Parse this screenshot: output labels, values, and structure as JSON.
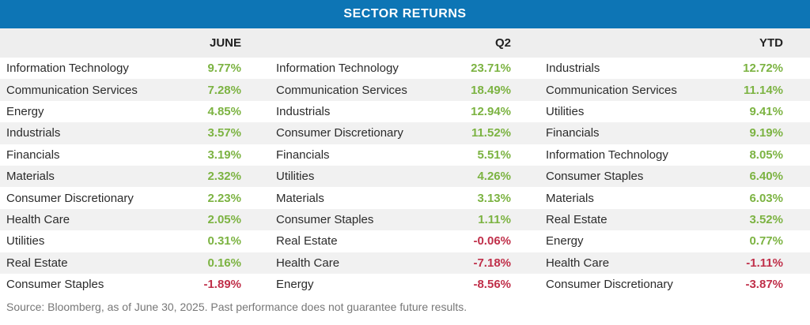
{
  "title": "SECTOR RETURNS",
  "columns": [
    {
      "heading": "JUNE",
      "rows": [
        {
          "sector": "Information Technology",
          "value": "9.77%"
        },
        {
          "sector": "Communication Services",
          "value": "7.28%"
        },
        {
          "sector": "Energy",
          "value": "4.85%"
        },
        {
          "sector": "Industrials",
          "value": "3.57%"
        },
        {
          "sector": "Financials",
          "value": "3.19%"
        },
        {
          "sector": "Materials",
          "value": "2.32%"
        },
        {
          "sector": "Consumer Discretionary",
          "value": "2.23%"
        },
        {
          "sector": "Health Care",
          "value": "2.05%"
        },
        {
          "sector": "Utilities",
          "value": "0.31%"
        },
        {
          "sector": "Real Estate",
          "value": "0.16%"
        },
        {
          "sector": "Consumer Staples",
          "value": "-1.89%"
        }
      ]
    },
    {
      "heading": "Q2",
      "rows": [
        {
          "sector": "Information Technology",
          "value": "23.71%"
        },
        {
          "sector": "Communication Services",
          "value": "18.49%"
        },
        {
          "sector": "Industrials",
          "value": "12.94%"
        },
        {
          "sector": "Consumer Discretionary",
          "value": "11.52%"
        },
        {
          "sector": "Financials",
          "value": "5.51%"
        },
        {
          "sector": "Utilities",
          "value": "4.26%"
        },
        {
          "sector": "Materials",
          "value": "3.13%"
        },
        {
          "sector": "Consumer Staples",
          "value": "1.11%"
        },
        {
          "sector": "Real Estate",
          "value": "-0.06%"
        },
        {
          "sector": "Health Care",
          "value": "-7.18%"
        },
        {
          "sector": "Energy",
          "value": "-8.56%"
        }
      ]
    },
    {
      "heading": "YTD",
      "rows": [
        {
          "sector": "Industrials",
          "value": "12.72%"
        },
        {
          "sector": "Communication Services",
          "value": "11.14%"
        },
        {
          "sector": "Utilities",
          "value": "9.41%"
        },
        {
          "sector": "Financials",
          "value": "9.19%"
        },
        {
          "sector": "Information Technology",
          "value": "8.05%"
        },
        {
          "sector": "Consumer Staples",
          "value": "6.40%"
        },
        {
          "sector": "Materials",
          "value": "6.03%"
        },
        {
          "sector": "Real Estate",
          "value": "3.52%"
        },
        {
          "sector": "Energy",
          "value": "0.77%"
        },
        {
          "sector": "Health Care",
          "value": "-1.11%"
        },
        {
          "sector": "Consumer Discretionary",
          "value": "-3.87%"
        }
      ]
    }
  ],
  "footer": "Source: Bloomberg, as of June 30, 2025. Past performance does not guarantee future results.",
  "colors": {
    "title_bar": "#0d75b5",
    "positive": "#7cb342",
    "negative": "#c0304a",
    "header_bg": "#eeeeee",
    "stripe_bg": "#f1f1f1"
  }
}
